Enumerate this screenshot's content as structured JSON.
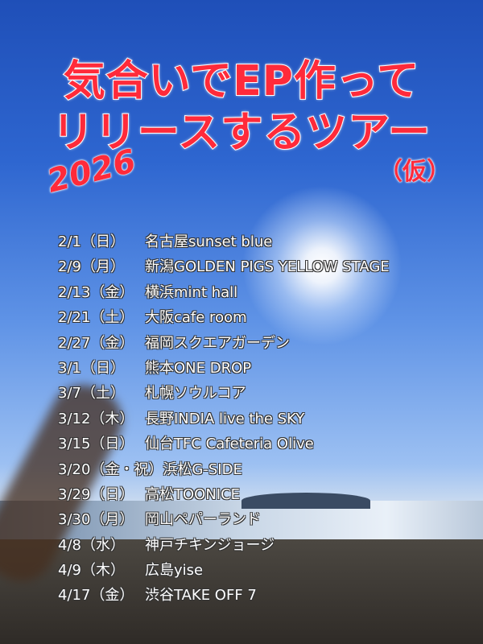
{
  "title": {
    "line1": "気合いでEP作って",
    "line2": "リリースするツアー",
    "year": "2026",
    "note": "（仮）"
  },
  "schedule": [
    {
      "date": "2/1（日）",
      "venue": "名古屋sunset blue"
    },
    {
      "date": "2/9（月）",
      "venue": "新潟GOLDEN PIGS YELLOW STAGE"
    },
    {
      "date": "2/13（金）",
      "venue": "横浜mint hall"
    },
    {
      "date": "2/21（土）",
      "venue": "大阪cafe room"
    },
    {
      "date": "2/27（金）",
      "venue": "福岡スクエアガーデン"
    },
    {
      "date": "3/1（日）",
      "venue": "熊本ONE DROP"
    },
    {
      "date": "3/7（土）",
      "venue": "札幌ソウルコア"
    },
    {
      "date": "3/12（木）",
      "venue": "長野INDIA live the SKY"
    },
    {
      "date": "3/15（日）",
      "venue": "仙台TFC Cafeteria Olive"
    },
    {
      "date": "3/20（金・祝）",
      "venue": "浜松G-SIDE"
    },
    {
      "date": "3/29（日）",
      "venue": "高松TOONICE"
    },
    {
      "date": "3/30（月）",
      "venue": "岡山ペパーランド"
    },
    {
      "date": "4/8（水）",
      "venue": "神戸チキンジョージ"
    },
    {
      "date": "4/9（木）",
      "venue": "広島yise"
    },
    {
      "date": "4/17（金）",
      "venue": "渋谷TAKE OFF 7"
    }
  ],
  "colors": {
    "title": "#ff2a3a",
    "text": "#ffffff"
  }
}
